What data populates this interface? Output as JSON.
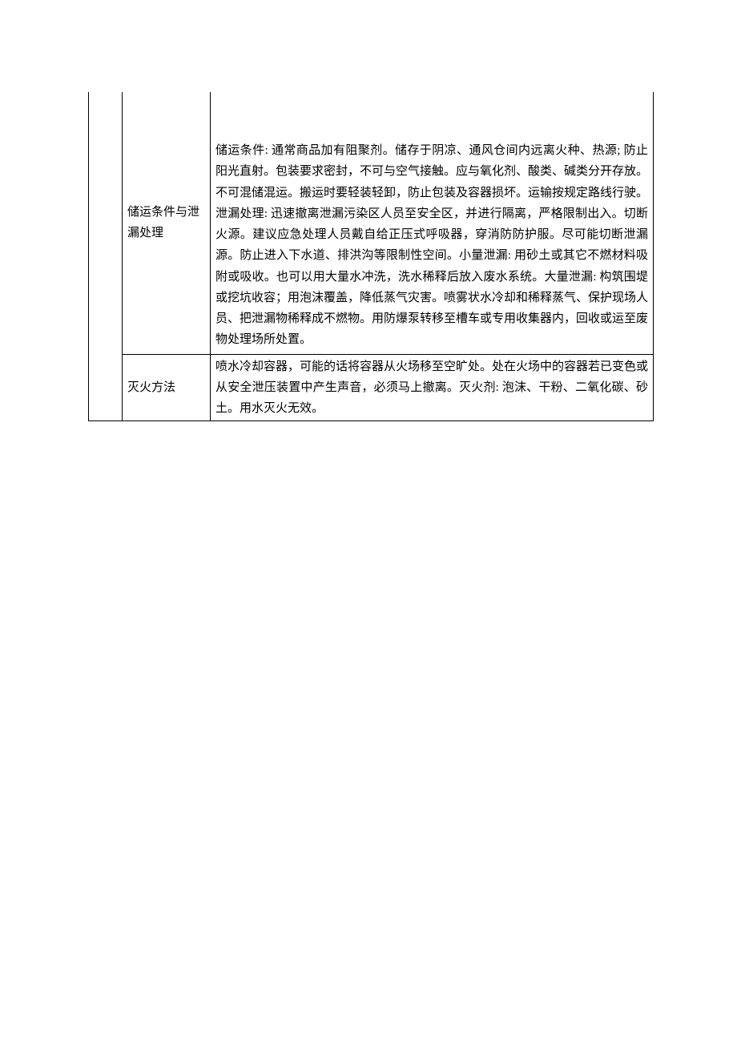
{
  "table": {
    "text_color": "#000000",
    "border_color": "#000000",
    "background_color": "#ffffff",
    "font_size_pt": 11,
    "line_height": 1.75,
    "rows": [
      {
        "label": "储运条件与泄漏处理",
        "content": "储运条件: 通常商品加有阻聚剂。储存于阴凉、通风仓间内远离火种、热源; 防止阳光直射。包装要求密封，不可与空气接触。应与氧化剂、酸类、碱类分开存放。不可混储混运。搬运时要轻装轻卸，防止包装及容器损坏。运输按规定路线行驶。泄漏处理: 迅速撤离泄漏污染区人员至安全区，并进行隔离，严格限制出入。切断火源。建议应急处理人员戴自给正压式呼吸器，穿消防防护服。尽可能切断泄漏源。防止进入下水道、排洪沟等限制性空间。小量泄漏: 用砂土或其它不燃材料吸附或吸收。也可以用大量水冲洗，洗水稀释后放入废水系统。大量泄漏: 构筑围堤或挖坑收容；用泡沫覆盖，降低蒸气灾害。喷雾状水冷却和稀释蒸气、保护现场人员、把泄漏物稀释成不燃物。用防爆泵转移至槽车或专用收集器内，回收或运至废物处理场所处置。"
      },
      {
        "label": "灭火方法",
        "content": "喷水冷却容器，可能的话将容器从火场移至空旷处。处在火场中的容器若已变色或从安全泄压装置中产生声音，必须马上撤离。灭火剂: 泡沫、干粉、二氧化碳、砂土。用水灭火无效。"
      }
    ]
  }
}
